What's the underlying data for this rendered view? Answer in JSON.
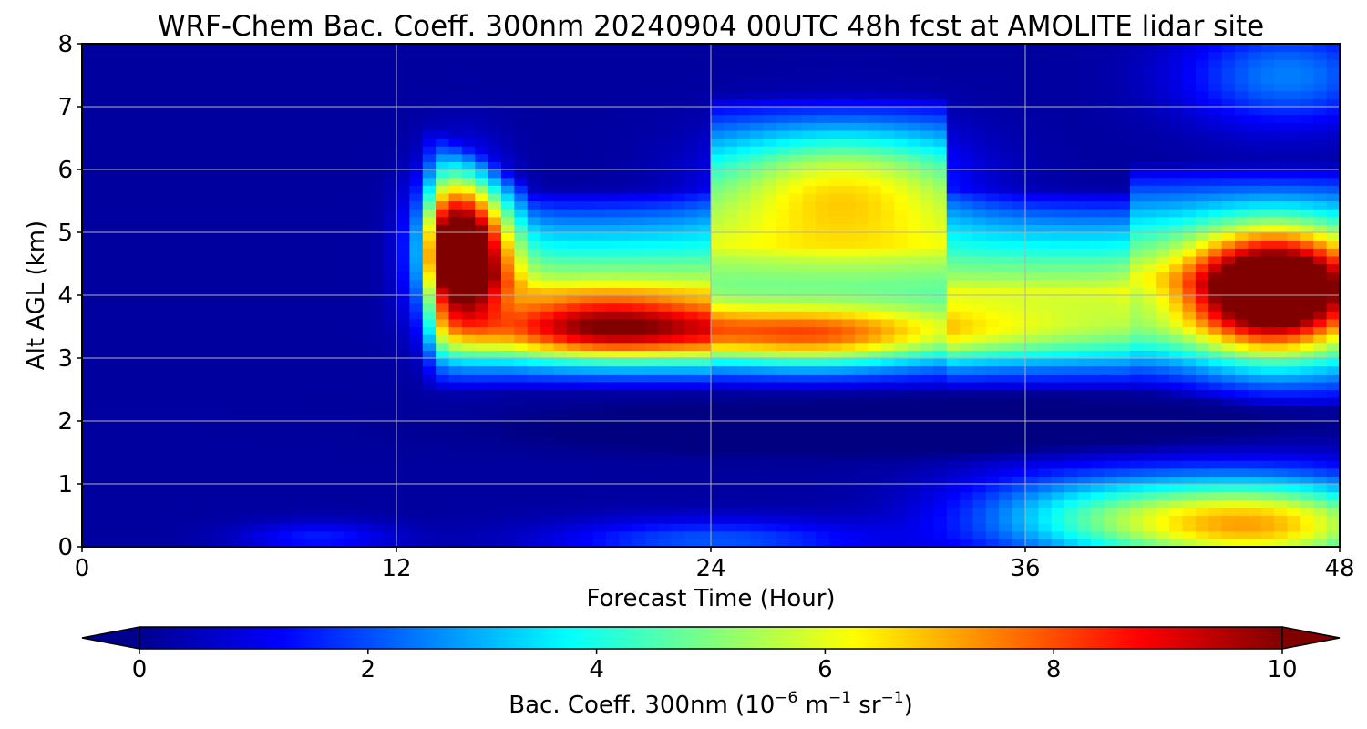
{
  "chart_data": {
    "type": "heatmap",
    "title": "WRF-Chem Bac. Coeff. 300nm  20240904 00UTC 48h fcst at AMOLITE lidar site",
    "xlabel": "Forecast Time (Hour)",
    "ylabel": "Alt AGL (km)",
    "xlim": [
      0,
      48
    ],
    "ylim": [
      0,
      8
    ],
    "xticks": [
      "0",
      "12",
      "24",
      "36",
      "48"
    ],
    "yticks": [
      "0",
      "1",
      "2",
      "3",
      "4",
      "5",
      "6",
      "7",
      "8"
    ],
    "grid": true,
    "colormap": "jet",
    "colorbar": {
      "label_main": "Bac. Coeff. 300nm  (10",
      "label_exp1": "−6",
      "label_mid": " m",
      "label_exp2": "−1",
      "label_mid2": " sr",
      "label_exp3": "−1",
      "label_end": ")",
      "ticks": [
        "0",
        "2",
        "4",
        "6",
        "8",
        "10"
      ],
      "min": 0,
      "max": 10,
      "extend": "both"
    },
    "field_description": "Backscatter coefficient vs. forecast hour (0–48) and altitude (0–8 km). Low values (<1) dominate the first 12 h and aloft. A strong aerosol layer at ~3–6 km appears at hour ~13 with peaks >10 at hours 13–16 and 42–48 (3–5 km), ~7–9 around hours 17–30 near 3–4 km; a moderate near-surface layer (5–8) builds after hour 36 below 1.5 km.",
    "features": [
      {
        "x": [
          13.2,
          15.5
        ],
        "y": [
          3.4,
          6.0
        ],
        "value": 10.5
      },
      {
        "x": [
          41.5,
          48
        ],
        "y": [
          3.0,
          5.3
        ],
        "value": 10.5
      },
      {
        "x": [
          17,
          30
        ],
        "y": [
          3.0,
          4.2
        ],
        "value": 8.5
      },
      {
        "x": [
          24,
          36
        ],
        "y": [
          2.5,
          5.0
        ],
        "value": 6.5
      },
      {
        "x": [
          36,
          48
        ],
        "y": [
          0,
          1.3
        ],
        "value": 6.5
      },
      {
        "x": [
          25,
          34
        ],
        "y": [
          5.0,
          7.0
        ],
        "value": 4.5
      }
    ]
  }
}
